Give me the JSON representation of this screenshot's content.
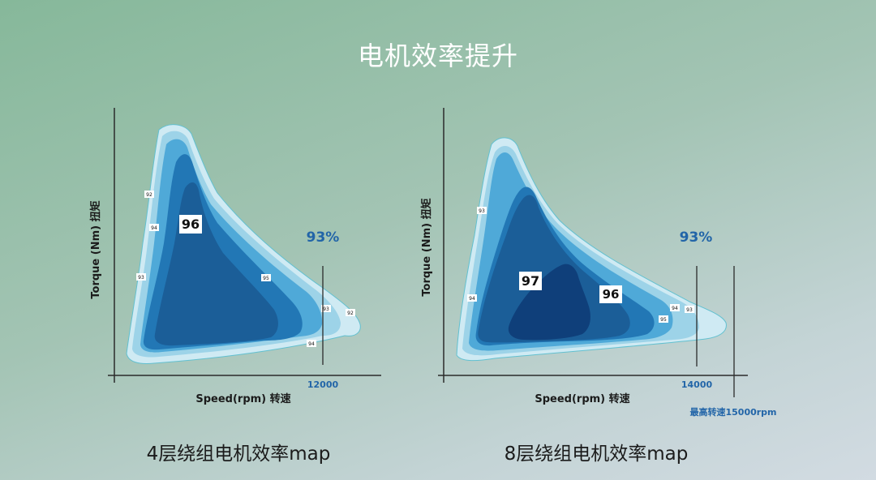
{
  "title": "电机效率提升",
  "colors": {
    "contour_light": "#cfeaf3",
    "contour_1": "#9dd3e8",
    "contour_2": "#4fa9d8",
    "contour_3": "#2277b5",
    "contour_4": "#1b5e98",
    "contour_core": "#0f3f7a",
    "accent_text": "#2265a8",
    "axis": "#2b2b2b"
  },
  "chart_data": [
    {
      "type": "contour",
      "caption": "4层绕组电机效率map",
      "xlabel": "Speed(rpm) 转速",
      "ylabel": "Torque (Nm) 扭矩",
      "speed_marker": "12000",
      "summary_label": "93%",
      "peak_label": "96",
      "contour_labels": [
        "92",
        "94",
        "93",
        "95",
        "93",
        "92",
        "94"
      ]
    },
    {
      "type": "contour",
      "caption": "8层绕组电机效率map",
      "xlabel": "Speed(rpm) 转速",
      "ylabel": "Torque (Nm) 扭矩",
      "speed_marker": "14000",
      "max_speed_note": "最高转速15000rpm",
      "summary_label": "93%",
      "peak_label": "97",
      "secondary_label": "96",
      "contour_labels": [
        "93",
        "94",
        "94",
        "93",
        "95"
      ]
    }
  ]
}
